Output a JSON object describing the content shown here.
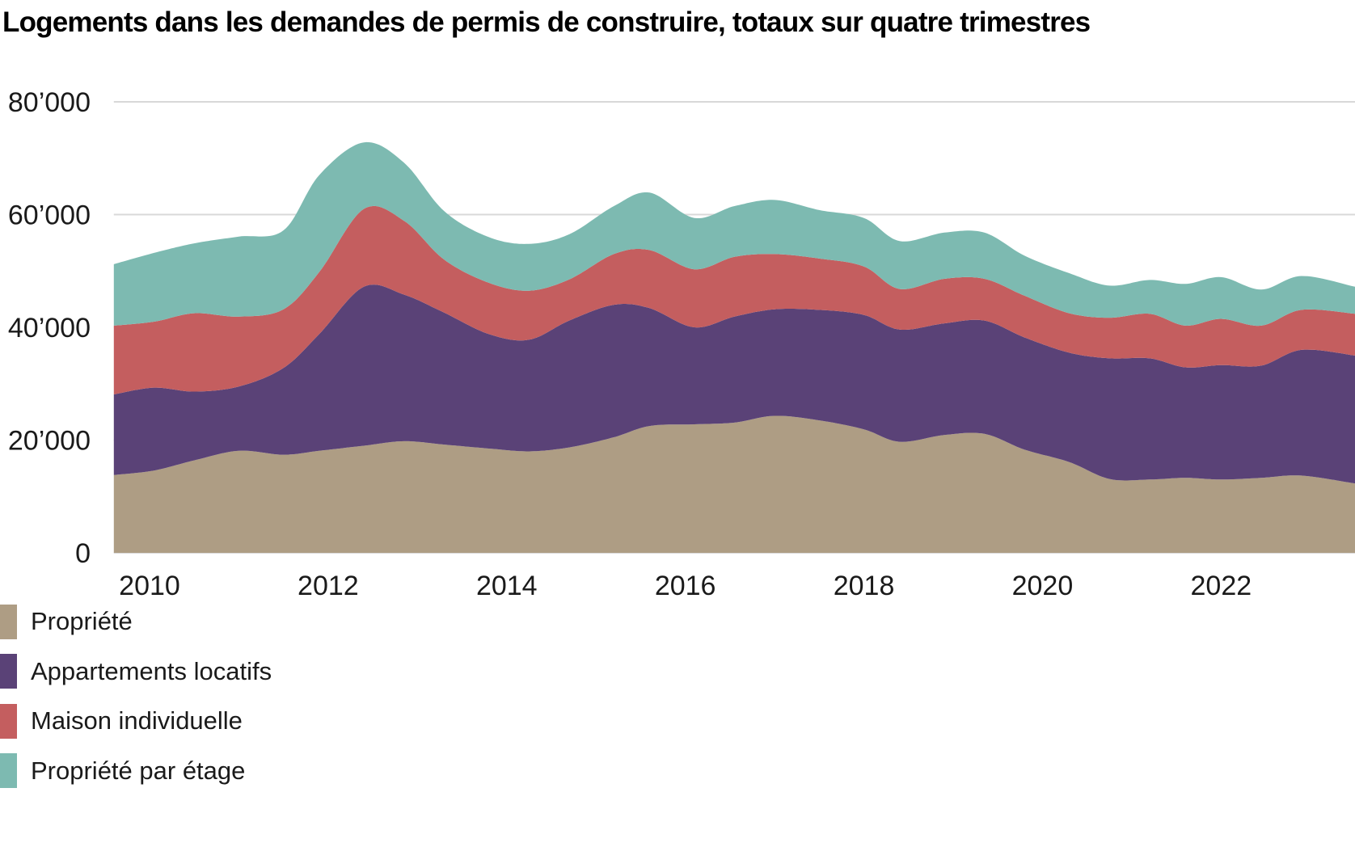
{
  "chart_data": {
    "type": "area",
    "stacked": true,
    "title": "Logements dans les demandes de permis de construire, totaux sur quatre trimestres",
    "xlabel": "",
    "ylabel": "",
    "ylim": [
      0,
      80000
    ],
    "xlim": [
      2009.6,
      2023.5
    ],
    "grid": "horizontal",
    "legend_position": "bottom-left",
    "grid_color": "#d8d8d8",
    "tick_color": "#1a1a1a",
    "x": [
      2009.6,
      2010.05,
      2010.5,
      2011.0,
      2011.5,
      2011.9,
      2012.4,
      2012.85,
      2013.3,
      2013.8,
      2014.25,
      2014.7,
      2015.2,
      2015.6,
      2016.1,
      2016.55,
      2017.0,
      2017.5,
      2018.0,
      2018.4,
      2018.9,
      2019.35,
      2019.8,
      2020.3,
      2020.75,
      2021.2,
      2021.6,
      2022.0,
      2022.45,
      2022.9,
      2023.5
    ],
    "series": [
      {
        "name": "Propriété",
        "color": "#AE9D84",
        "values": [
          13800,
          14600,
          16400,
          18100,
          17400,
          18100,
          19000,
          19800,
          19200,
          18500,
          18000,
          18700,
          20500,
          22500,
          22800,
          23100,
          24300,
          23500,
          21900,
          19700,
          20900,
          21100,
          18300,
          16100,
          13100,
          13000,
          13300,
          13000,
          13300,
          13700,
          12300
        ]
      },
      {
        "name": "Appartements locatifs",
        "color": "#5A4277",
        "values": [
          14300,
          14700,
          12200,
          11400,
          15400,
          20700,
          28200,
          26000,
          23400,
          20300,
          19800,
          22500,
          23500,
          20900,
          17200,
          18800,
          18900,
          19600,
          20300,
          19900,
          19800,
          20100,
          19900,
          19400,
          21400,
          21500,
          19600,
          20300,
          19900,
          22300,
          22700
        ]
      },
      {
        "name": "Maison individuelle",
        "color": "#C45E5F",
        "values": [
          12200,
          11700,
          13900,
          12400,
          10400,
          11000,
          13800,
          13100,
          9400,
          9100,
          8700,
          7300,
          9000,
          10300,
          10300,
          10600,
          9800,
          9100,
          8600,
          7200,
          7900,
          7400,
          7400,
          7000,
          7200,
          7900,
          7400,
          8200,
          7100,
          7100,
          7400
        ]
      },
      {
        "name": "Propriété par étage",
        "color": "#7DBAB1",
        "values": [
          10900,
          12200,
          12400,
          14200,
          14000,
          17200,
          11800,
          10300,
          8600,
          8100,
          8300,
          8000,
          8500,
          10200,
          9100,
          9000,
          9600,
          8600,
          8600,
          8500,
          8200,
          8200,
          7100,
          7100,
          5700,
          6000,
          7400,
          7400,
          6400,
          6000,
          4800
        ]
      }
    ],
    "yticks": [
      {
        "value": 0,
        "label": "0"
      },
      {
        "value": 20000,
        "label": "20’000"
      },
      {
        "value": 40000,
        "label": "40’000"
      },
      {
        "value": 60000,
        "label": "60’000"
      },
      {
        "value": 80000,
        "label": "80’000"
      }
    ],
    "xticks": [
      {
        "value": 2010,
        "label": "2010"
      },
      {
        "value": 2012,
        "label": "2012"
      },
      {
        "value": 2014,
        "label": "2014"
      },
      {
        "value": 2016,
        "label": "2016"
      },
      {
        "value": 2018,
        "label": "2018"
      },
      {
        "value": 2020,
        "label": "2020"
      },
      {
        "value": 2022,
        "label": "2022"
      }
    ]
  }
}
